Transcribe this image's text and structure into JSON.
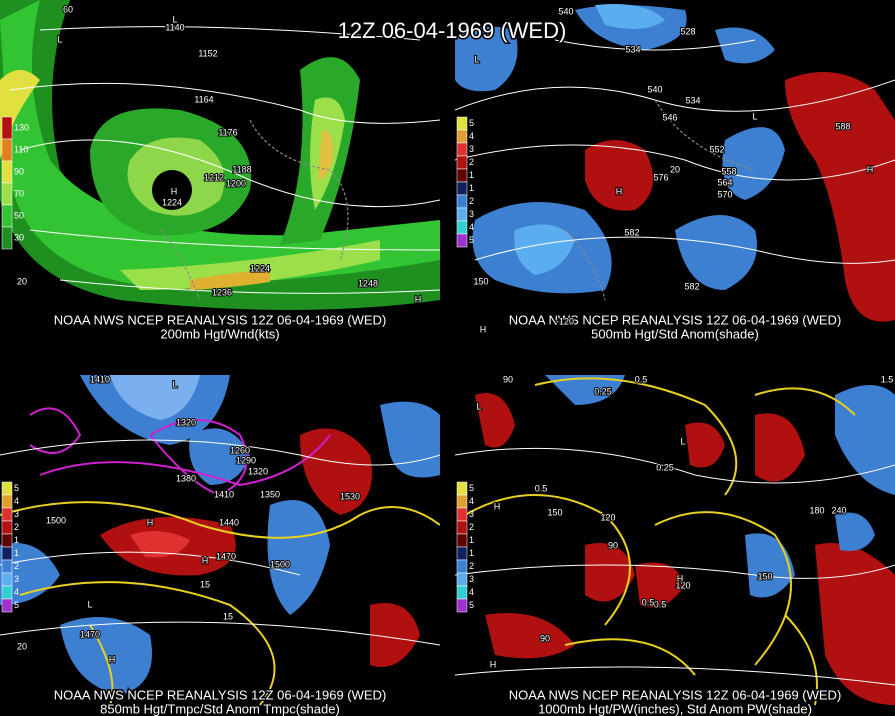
{
  "title": "12Z 06-04-1969 (WED)",
  "panels": [
    {
      "caption": [
        "NOAA NWS NCEP REANALYSIS 12Z 06-04-1969 (WED)",
        "200mb Hgt/Wnd(kts)"
      ],
      "legend": [
        "130",
        "110",
        "90",
        "70",
        "50",
        "30"
      ],
      "labels": [
        "1140",
        "1152",
        "1164",
        "1176",
        "1188",
        "1200",
        "1212",
        "1224",
        "1236",
        "1248",
        "1224",
        "H",
        "L",
        "L",
        "H",
        "60",
        "20"
      ]
    },
    {
      "caption": [
        "NOAA NWS NCEP REANALYSIS 12Z 06-04-1969 (WED)",
        "500mb Hgt/Std Anom(shade)"
      ],
      "legend": [
        "5",
        "4",
        "3",
        "2",
        "1",
        "1",
        "2",
        "3",
        "4",
        "5"
      ],
      "labels": [
        "540",
        "528",
        "534",
        "540",
        "546",
        "534",
        "552",
        "558",
        "564",
        "570",
        "576",
        "582",
        "582",
        "588",
        "L",
        "L",
        "H",
        "H",
        "H",
        "-120",
        "150",
        "20"
      ]
    },
    {
      "caption": [
        "NOAA NWS NCEP REANALYSIS 12Z 06-04-1969 (WED)",
        "850mb Hgt/Tmpc/Std Anom Tmpc(shade)"
      ],
      "legend": [
        "5",
        "4",
        "3",
        "2",
        "1",
        "1",
        "2",
        "3",
        "4",
        "5"
      ],
      "labels": [
        "1410",
        "1320",
        "1260",
        "1290",
        "1320",
        "1380",
        "1350",
        "1410",
        "1440",
        "1470",
        "1500",
        "1530",
        "1500",
        "1470",
        "15",
        "15",
        "L",
        "L",
        "H",
        "H",
        "H",
        "20"
      ]
    },
    {
      "caption": [
        "NOAA NWS NCEP REANALYSIS 12Z 06-04-1969 (WED)",
        "1000mb Hgt/PW(inches), Std Anom PW(shade)"
      ],
      "legend": [
        "5",
        "4",
        "3",
        "2",
        "1",
        "1",
        "2",
        "3",
        "4",
        "5"
      ],
      "labels": [
        "90",
        "150",
        "120",
        "90",
        "120",
        "150",
        "180",
        "240",
        "0.5",
        "0.25",
        "0.5",
        "0.25",
        "1.5",
        "0.5",
        "0.5",
        "90",
        "L",
        "L",
        "H",
        "H",
        "H"
      ]
    }
  ]
}
